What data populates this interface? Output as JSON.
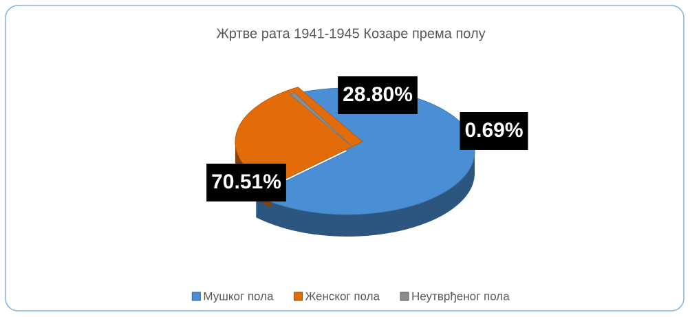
{
  "chart_data": {
    "type": "pie",
    "title": "Жртве рата 1941-1945 Козаре према полу",
    "categories": [
      "Мушког пола",
      "Женског пола",
      "Неутврђеног пола"
    ],
    "values": [
      70.51,
      28.8,
      0.69
    ],
    "value_labels": [
      "70.51%",
      "28.80%",
      "0.69%"
    ],
    "colors": [
      "#4a8fd6",
      "#e36c0a",
      "#8c8c8c"
    ],
    "legend": "bottom"
  }
}
